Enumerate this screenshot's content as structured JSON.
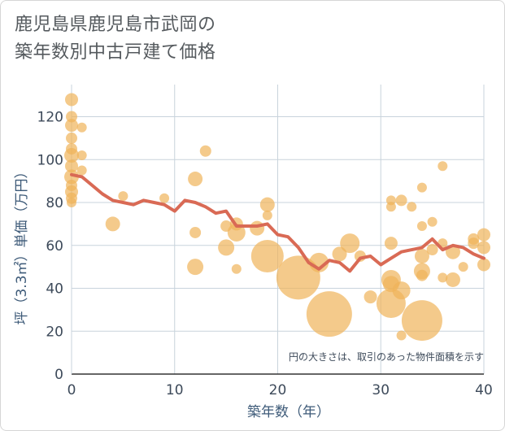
{
  "title_line1": "鹿児島県鹿児島市武岡の",
  "title_line2": "築年数別中古戸建て価格",
  "chart_data": {
    "type": "scatter",
    "xlabel": "築年数（年）",
    "ylabel": "坪（3.3㎡）単価（万円）",
    "xlim": [
      0,
      40
    ],
    "ylim": [
      0,
      135
    ],
    "xticks": [
      0,
      10,
      20,
      30,
      40
    ],
    "yticks": [
      0,
      20,
      40,
      60,
      80,
      100,
      120
    ],
    "grid": true,
    "annotation": "円の大きさは、取引のあった物件面積を示す",
    "colors": {
      "bubble": "#f0b45a",
      "line": "#d96a55",
      "grid": "#c8d3dc"
    },
    "bubbles": [
      {
        "x": 0,
        "y": 128,
        "s": 8
      },
      {
        "x": 0,
        "y": 120,
        "s": 7
      },
      {
        "x": 0,
        "y": 116,
        "s": 8
      },
      {
        "x": 0,
        "y": 110,
        "s": 7
      },
      {
        "x": 0,
        "y": 105,
        "s": 7
      },
      {
        "x": 0,
        "y": 102,
        "s": 9
      },
      {
        "x": 0,
        "y": 97,
        "s": 8
      },
      {
        "x": 0,
        "y": 92,
        "s": 9
      },
      {
        "x": 0,
        "y": 88,
        "s": 7
      },
      {
        "x": 0,
        "y": 85,
        "s": 8
      },
      {
        "x": 0,
        "y": 82,
        "s": 7
      },
      {
        "x": 0,
        "y": 80,
        "s": 6
      },
      {
        "x": 1,
        "y": 115,
        "s": 6
      },
      {
        "x": 1,
        "y": 102,
        "s": 6
      },
      {
        "x": 1,
        "y": 95,
        "s": 6
      },
      {
        "x": 4,
        "y": 70,
        "s": 9
      },
      {
        "x": 5,
        "y": 83,
        "s": 6
      },
      {
        "x": 9,
        "y": 82,
        "s": 6
      },
      {
        "x": 12,
        "y": 91,
        "s": 9
      },
      {
        "x": 12,
        "y": 66,
        "s": 7
      },
      {
        "x": 12,
        "y": 50,
        "s": 10
      },
      {
        "x": 13,
        "y": 104,
        "s": 7
      },
      {
        "x": 15,
        "y": 69,
        "s": 7
      },
      {
        "x": 15,
        "y": 59,
        "s": 10
      },
      {
        "x": 16,
        "y": 70,
        "s": 8
      },
      {
        "x": 16,
        "y": 66,
        "s": 11
      },
      {
        "x": 16,
        "y": 49,
        "s": 6
      },
      {
        "x": 18,
        "y": 68,
        "s": 9
      },
      {
        "x": 19,
        "y": 79,
        "s": 9
      },
      {
        "x": 19,
        "y": 74,
        "s": 6
      },
      {
        "x": 19,
        "y": 55,
        "s": 20
      },
      {
        "x": 22,
        "y": 45,
        "s": 27
      },
      {
        "x": 24,
        "y": 52,
        "s": 12
      },
      {
        "x": 25,
        "y": 28,
        "s": 28
      },
      {
        "x": 26,
        "y": 56,
        "s": 9
      },
      {
        "x": 27,
        "y": 61,
        "s": 12
      },
      {
        "x": 28,
        "y": 55,
        "s": 7
      },
      {
        "x": 29,
        "y": 36,
        "s": 8
      },
      {
        "x": 31,
        "y": 81,
        "s": 6
      },
      {
        "x": 31,
        "y": 78,
        "s": 6
      },
      {
        "x": 31,
        "y": 61,
        "s": 8
      },
      {
        "x": 31,
        "y": 44,
        "s": 12
      },
      {
        "x": 31,
        "y": 42,
        "s": 10
      },
      {
        "x": 31,
        "y": 33,
        "s": 18
      },
      {
        "x": 32,
        "y": 81,
        "s": 7
      },
      {
        "x": 32,
        "y": 39,
        "s": 11
      },
      {
        "x": 32,
        "y": 18,
        "s": 6
      },
      {
        "x": 33,
        "y": 78,
        "s": 6
      },
      {
        "x": 34,
        "y": 87,
        "s": 6
      },
      {
        "x": 34,
        "y": 69,
        "s": 6
      },
      {
        "x": 34,
        "y": 55,
        "s": 9
      },
      {
        "x": 34,
        "y": 48,
        "s": 10
      },
      {
        "x": 34,
        "y": 46,
        "s": 7
      },
      {
        "x": 34,
        "y": 25,
        "s": 25
      },
      {
        "x": 35,
        "y": 71,
        "s": 6
      },
      {
        "x": 35,
        "y": 58,
        "s": 7
      },
      {
        "x": 36,
        "y": 97,
        "s": 6
      },
      {
        "x": 36,
        "y": 61,
        "s": 6
      },
      {
        "x": 36,
        "y": 45,
        "s": 6
      },
      {
        "x": 37,
        "y": 57,
        "s": 9
      },
      {
        "x": 37,
        "y": 44,
        "s": 9
      },
      {
        "x": 38,
        "y": 50,
        "s": 6
      },
      {
        "x": 39,
        "y": 63,
        "s": 7
      },
      {
        "x": 39,
        "y": 61,
        "s": 7
      },
      {
        "x": 40,
        "y": 65,
        "s": 8
      },
      {
        "x": 40,
        "y": 59,
        "s": 8
      },
      {
        "x": 40,
        "y": 51,
        "s": 8
      }
    ],
    "trend": {
      "x": [
        0,
        1,
        2,
        3,
        4,
        5,
        6,
        7,
        8,
        9,
        10,
        11,
        12,
        13,
        14,
        15,
        16,
        17,
        18,
        19,
        20,
        21,
        22,
        23,
        24,
        25,
        26,
        27,
        28,
        29,
        30,
        31,
        32,
        33,
        34,
        35,
        36,
        37,
        38,
        39,
        40
      ],
      "y": [
        93,
        92,
        88,
        84,
        81,
        80,
        79,
        81,
        80,
        79,
        76,
        81,
        80,
        78,
        75,
        76,
        69,
        69,
        69,
        70,
        65,
        64,
        59,
        52,
        49,
        53,
        52,
        48,
        54,
        55,
        51,
        54,
        57,
        58,
        59,
        63,
        58,
        60,
        59,
        56,
        54
      ]
    }
  }
}
